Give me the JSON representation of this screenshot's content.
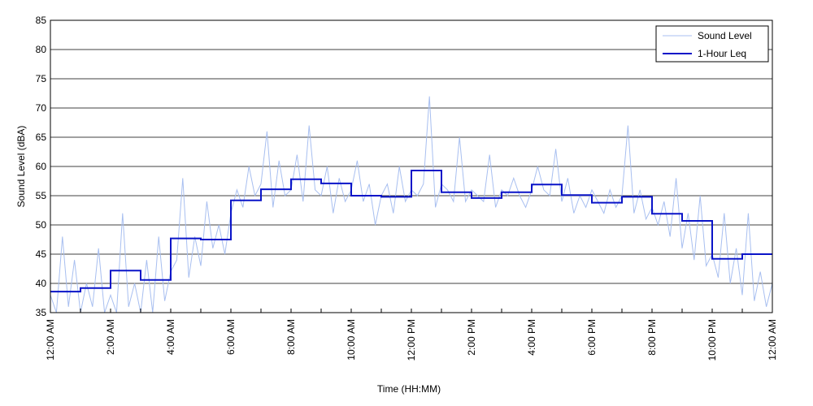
{
  "chart_data": {
    "type": "line",
    "title": "",
    "xlabel": "Time (HH:MM)",
    "ylabel": "Sound Level (dBA)",
    "xlim": [
      0,
      24
    ],
    "ylim": [
      35,
      85
    ],
    "y_ticks": [
      35,
      40,
      45,
      50,
      55,
      60,
      65,
      70,
      75,
      80,
      85
    ],
    "x_ticks": [
      0,
      2,
      4,
      6,
      8,
      10,
      12,
      14,
      16,
      18,
      20,
      22,
      24
    ],
    "x_tick_labels": [
      "12:00 AM",
      "2:00 AM",
      "4:00 AM",
      "6:00 AM",
      "8:00 AM",
      "10:00 AM",
      "12:00 PM",
      "2:00 PM",
      "4:00 PM",
      "6:00 PM",
      "8:00 PM",
      "10:00 PM",
      "12:00 AM"
    ],
    "grid": "horizontal",
    "legend_position": "top-right",
    "series": [
      {
        "name": "Sound Level",
        "style": "thin-line",
        "color": "#a8bff0",
        "x": [
          0,
          0.2,
          0.4,
          0.6,
          0.8,
          1.0,
          1.2,
          1.4,
          1.6,
          1.8,
          2.0,
          2.2,
          2.4,
          2.6,
          2.8,
          3.0,
          3.2,
          3.4,
          3.6,
          3.8,
          4.0,
          4.2,
          4.4,
          4.6,
          4.8,
          5.0,
          5.2,
          5.4,
          5.6,
          5.8,
          6.0,
          6.2,
          6.4,
          6.6,
          6.8,
          7.0,
          7.2,
          7.4,
          7.6,
          7.8,
          8.0,
          8.2,
          8.4,
          8.6,
          8.8,
          9.0,
          9.2,
          9.4,
          9.6,
          9.8,
          10.0,
          10.2,
          10.4,
          10.6,
          10.8,
          11.0,
          11.2,
          11.4,
          11.6,
          11.8,
          12.0,
          12.2,
          12.4,
          12.6,
          12.8,
          13.0,
          13.2,
          13.4,
          13.6,
          13.8,
          14.0,
          14.2,
          14.4,
          14.6,
          14.8,
          15.0,
          15.2,
          15.4,
          15.6,
          15.8,
          16.0,
          16.2,
          16.4,
          16.6,
          16.8,
          17.0,
          17.2,
          17.4,
          17.6,
          17.8,
          18.0,
          18.2,
          18.4,
          18.6,
          18.8,
          19.0,
          19.2,
          19.4,
          19.6,
          19.8,
          20.0,
          20.2,
          20.4,
          20.6,
          20.8,
          21.0,
          21.2,
          21.4,
          21.6,
          21.8,
          22.0,
          22.2,
          22.4,
          22.6,
          22.8,
          23.0,
          23.2,
          23.4,
          23.6,
          23.8,
          24.0
        ],
        "values": [
          38,
          35,
          48,
          36,
          44,
          35,
          40,
          36,
          46,
          35,
          38,
          35,
          52,
          36,
          40,
          35,
          44,
          35,
          48,
          37,
          42,
          44,
          58,
          41,
          48,
          43,
          54,
          46,
          50,
          45,
          52,
          56,
          53,
          60,
          55,
          57,
          66,
          53,
          61,
          55,
          56,
          62,
          54,
          67,
          56,
          55,
          60,
          52,
          58,
          54,
          56,
          61,
          54,
          57,
          50,
          55,
          57,
          52,
          60,
          54,
          56,
          55,
          57,
          72,
          53,
          57,
          56,
          54,
          65,
          54,
          56,
          55,
          54,
          62,
          53,
          56,
          55,
          58,
          55,
          53,
          56,
          60,
          56,
          55,
          63,
          54,
          58,
          52,
          55,
          53,
          56,
          54,
          52,
          56,
          53,
          55,
          67,
          52,
          56,
          51,
          53,
          50,
          54,
          48,
          58,
          46,
          52,
          44,
          55,
          43,
          45,
          41,
          52,
          40,
          46,
          38,
          52,
          37,
          42,
          36,
          40
        ]
      },
      {
        "name": "1-Hour Leq",
        "style": "step",
        "color": "#0a14c8",
        "x_start": [
          0,
          1,
          2,
          3,
          4,
          5,
          6,
          7,
          8,
          9,
          10,
          11,
          12,
          13,
          14,
          15,
          16,
          17,
          18,
          19,
          20,
          21,
          22,
          23
        ],
        "values": [
          38.6,
          39.2,
          42.2,
          40.6,
          47.7,
          47.5,
          54.2,
          56.1,
          57.8,
          57.1,
          55.0,
          54.8,
          59.3,
          55.6,
          54.6,
          55.6,
          56.9,
          55.1,
          53.8,
          54.8,
          51.9,
          50.7,
          44.2,
          45.0
        ]
      }
    ]
  }
}
